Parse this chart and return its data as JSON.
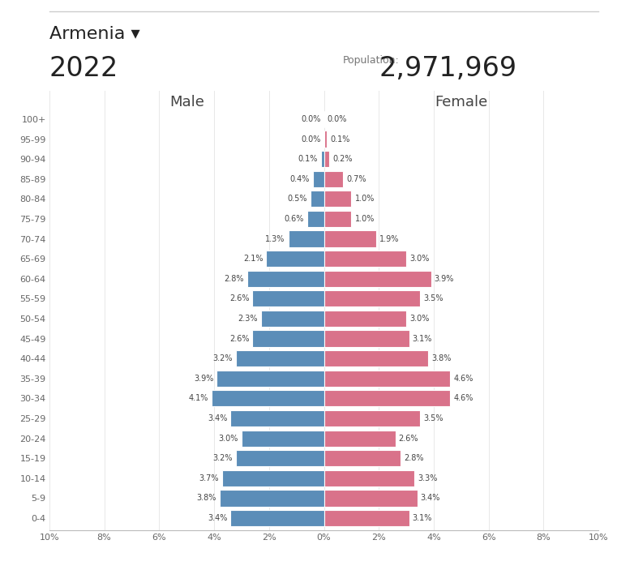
{
  "title_country": "Armenia ▾",
  "title_year": "2022",
  "population_label": "Population:",
  "population_value": "2,971,969",
  "age_groups": [
    "0-4",
    "5-9",
    "10-14",
    "15-19",
    "20-24",
    "25-29",
    "30-34",
    "35-39",
    "40-44",
    "45-49",
    "50-54",
    "55-59",
    "60-64",
    "65-69",
    "70-74",
    "75-79",
    "80-84",
    "85-89",
    "90-94",
    "95-99",
    "100+"
  ],
  "male_pct": [
    3.4,
    3.8,
    3.7,
    3.2,
    3.0,
    3.4,
    4.1,
    3.9,
    3.2,
    2.6,
    2.3,
    2.6,
    2.8,
    2.1,
    1.3,
    0.6,
    0.5,
    0.4,
    0.1,
    0.0,
    0.0
  ],
  "female_pct": [
    3.1,
    3.4,
    3.3,
    2.8,
    2.6,
    3.5,
    4.6,
    4.6,
    3.8,
    3.1,
    3.0,
    3.5,
    3.9,
    3.0,
    1.9,
    1.0,
    1.0,
    0.7,
    0.2,
    0.1,
    0.0
  ],
  "male_color": "#5b8db8",
  "female_color": "#d9728a",
  "bar_edge_color": "#ffffff",
  "background_color": "#ffffff",
  "axis_label_color": "#666666",
  "text_color": "#444444",
  "male_label": "Male",
  "female_label": "Female",
  "xlim": 10,
  "xtick_vals": [
    -10,
    -8,
    -6,
    -4,
    -2,
    0,
    2,
    4,
    6,
    8,
    10
  ],
  "xtick_labels": [
    "10%",
    "8%",
    "6%",
    "4%",
    "2%",
    "0%",
    "2%",
    "4%",
    "6%",
    "8%",
    "10%"
  ],
  "top_line_color": "#cccccc",
  "grid_color": "#e8e8e8",
  "header_country_fontsize": 16,
  "header_year_fontsize": 24,
  "header_pop_label_fontsize": 9,
  "header_pop_value_fontsize": 24
}
